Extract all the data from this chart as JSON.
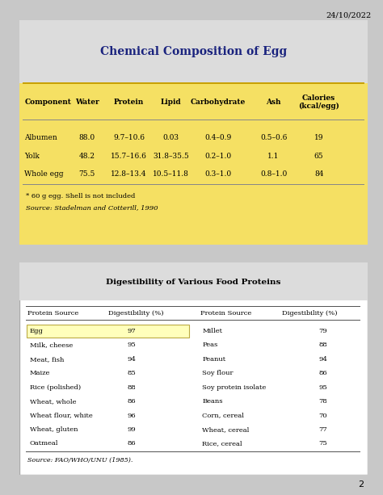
{
  "date_text": "24/10/2022",
  "page_number": "2",
  "fig_bg": "#c8c8c8",
  "table1": {
    "title": "Chemical Composition of Egg",
    "title_color": "#1a237e",
    "title_bg": "#e8e8e8",
    "yellow_bg": "#f5e063",
    "header_row": [
      "Component",
      "Water",
      "Protein",
      "Lipid",
      "Carbohydrate",
      "Ash",
      "Calories\n(kcal/egg)"
    ],
    "rows": [
      [
        "Albumen",
        "88.0",
        "9.7–10.6",
        "0.03",
        "0.4–0.9",
        "0.5–0.6",
        "19"
      ],
      [
        "Yolk",
        "48.2",
        "15.7–16.6",
        "31.8–35.5",
        "0.2–1.0",
        "1.1",
        "65"
      ],
      [
        "Whole egg",
        "75.5",
        "12.8–13.4",
        "10.5–11.8",
        "0.3–1.0",
        "0.8–1.0",
        "84"
      ]
    ],
    "footnote_line1": "* 60 g egg. Shell is not included",
    "footnote_line2": "Source: Stadelman and Cotterill, 1990"
  },
  "table2": {
    "title": "Digestibility of Various Food Proteins",
    "header_row": [
      "Protein Source",
      "Digestibility (%)",
      "Protein Source",
      "Digestibility (%)"
    ],
    "rows_left": [
      [
        "Egg",
        "97"
      ],
      [
        "Milk, cheese",
        "95"
      ],
      [
        "Meat, fish",
        "94"
      ],
      [
        "Maize",
        "85"
      ],
      [
        "Rice (polished)",
        "88"
      ],
      [
        "Wheat, whole",
        "86"
      ],
      [
        "Wheat flour, white",
        "96"
      ],
      [
        "Wheat, gluten",
        "99"
      ],
      [
        "Oatmeal",
        "86"
      ]
    ],
    "rows_right": [
      [
        "Millet",
        "79"
      ],
      [
        "Peas",
        "88"
      ],
      [
        "Peanut",
        "94"
      ],
      [
        "Soy flour",
        "86"
      ],
      [
        "Soy protein isolate",
        "95"
      ],
      [
        "Beans",
        "78"
      ],
      [
        "Corn, cereal",
        "70"
      ],
      [
        "Wheat, cereal",
        "77"
      ],
      [
        "Rice, cereal",
        "75"
      ]
    ],
    "egg_highlight_color": "#ffffbb",
    "egg_border_color": "#bbaa44",
    "footnote": "Source: FAO/WHO/UNU (1985).",
    "table2_bg": "#e8e8e8"
  }
}
